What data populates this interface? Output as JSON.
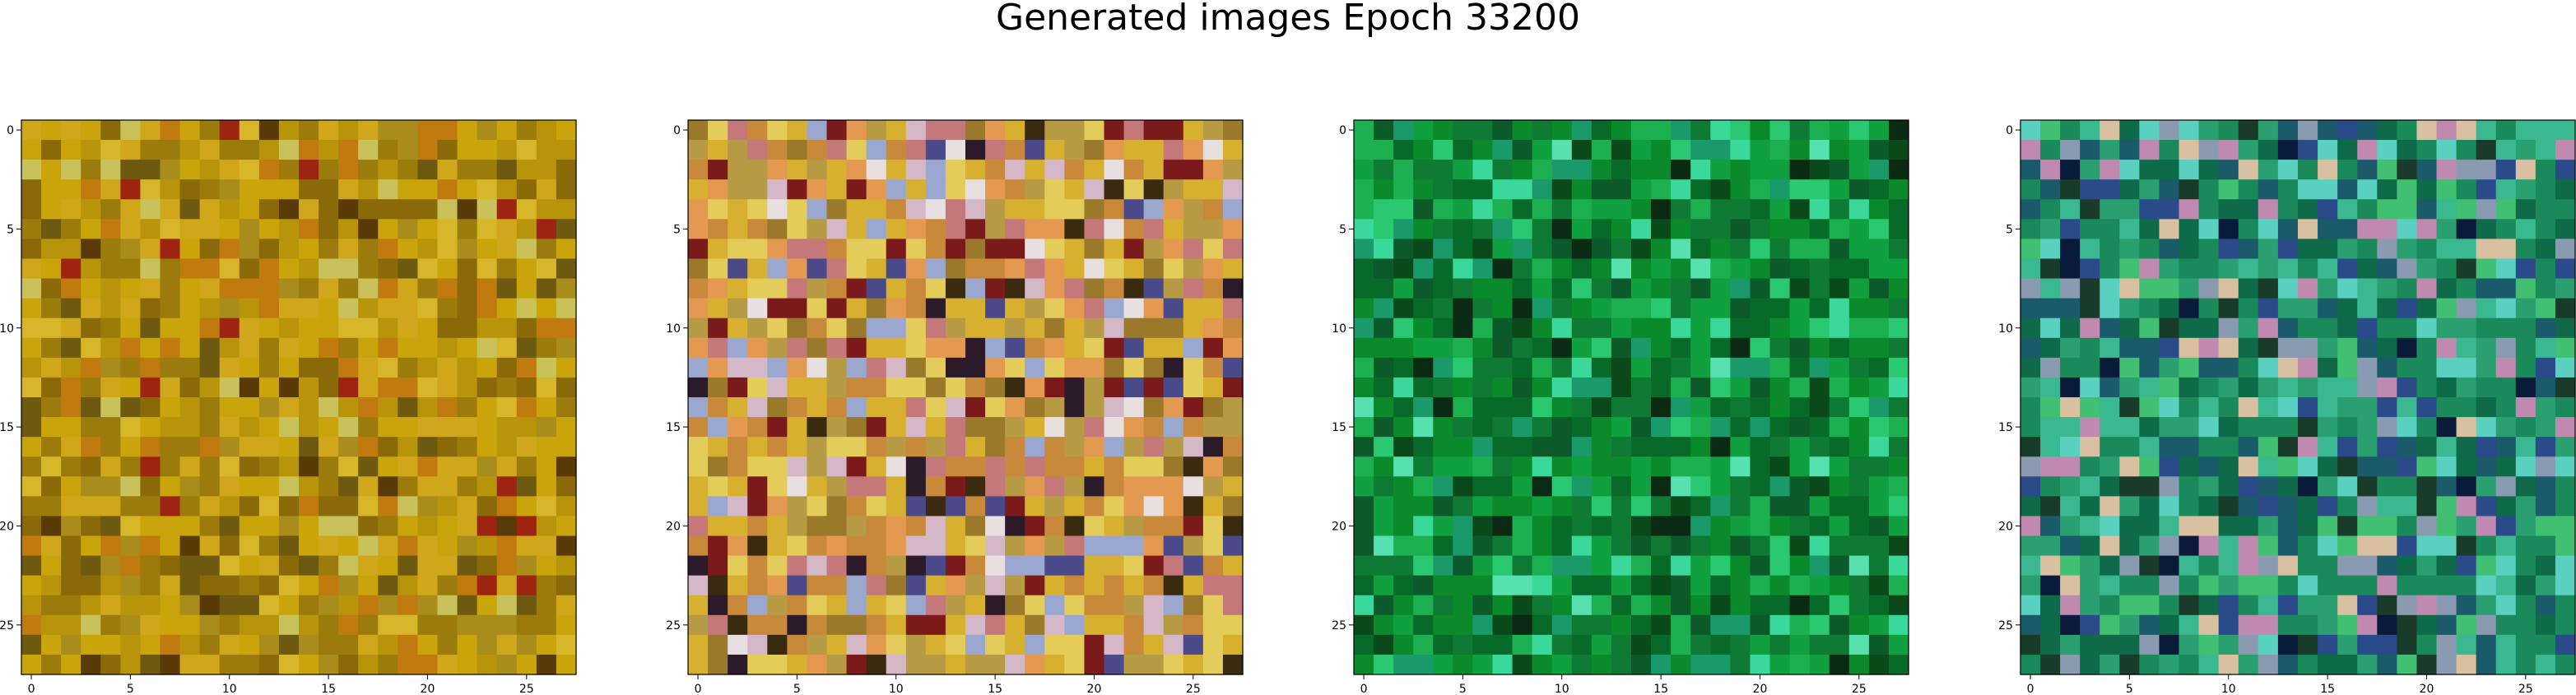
{
  "figure": {
    "title": "Generated images Epoch 33200"
  },
  "chart_data": [
    {
      "type": "heatmap",
      "rows": 28,
      "cols": 28,
      "xticks": [
        0,
        5,
        10,
        15,
        20,
        25
      ],
      "yticks": [
        0,
        5,
        10,
        15,
        20,
        25
      ],
      "xlim": [
        -0.5,
        27.5
      ],
      "ylim": [
        27.5,
        -0.5
      ],
      "grid": false,
      "palette": [
        "#c9a40a",
        "#b8940a",
        "#9a7b0c",
        "#d0a71a",
        "#8a6a08",
        "#c07a10",
        "#6d5a10",
        "#d7b62a",
        "#a88c1c",
        "#5a3a06",
        "#9c2410",
        "#c9c25a"
      ],
      "weights": [
        16,
        14,
        12,
        12,
        10,
        8,
        6,
        6,
        6,
        3,
        3,
        4
      ]
    },
    {
      "type": "heatmap",
      "rows": 28,
      "cols": 28,
      "xticks": [
        0,
        5,
        10,
        15,
        20,
        25
      ],
      "yticks": [
        0,
        5,
        10,
        15,
        20,
        25
      ],
      "xlim": [
        -0.5,
        27.5
      ],
      "ylim": [
        27.5,
        -0.5
      ],
      "grid": false,
      "palette": [
        "#d8b030",
        "#c88a3a",
        "#b69a44",
        "#e3cc5a",
        "#9a7a2a",
        "#e39a50",
        "#c4787a",
        "#7a1a1a",
        "#3a2a10",
        "#d4b8c8",
        "#9aa8d0",
        "#4a4a8a",
        "#e8e0e0",
        "#2a1a2a"
      ],
      "weights": [
        14,
        12,
        10,
        10,
        8,
        8,
        8,
        6,
        4,
        6,
        5,
        3,
        3,
        3
      ]
    },
    {
      "type": "heatmap",
      "rows": 28,
      "cols": 28,
      "xticks": [
        0,
        5,
        10,
        15,
        20,
        25
      ],
      "yticks": [
        0,
        5,
        10,
        15,
        20,
        25
      ],
      "xlim": [
        -0.5,
        27.5
      ],
      "ylim": [
        27.5,
        -0.5
      ],
      "grid": false,
      "palette": [
        "#0a8a2a",
        "#0e7a34",
        "#10a040",
        "#086a28",
        "#1cb050",
        "#0c5a2a",
        "#2ac870",
        "#3ad89a",
        "#1a9a6a",
        "#0a4a1a",
        "#0a2a14",
        "#58e0b0"
      ],
      "weights": [
        16,
        14,
        12,
        12,
        10,
        8,
        6,
        5,
        6,
        5,
        3,
        3
      ]
    },
    {
      "type": "heatmap",
      "rows": 28,
      "cols": 28,
      "xticks": [
        0,
        5,
        10,
        15,
        20,
        25
      ],
      "yticks": [
        0,
        5,
        10,
        15,
        20,
        25
      ],
      "xlim": [
        -0.5,
        27.5
      ],
      "ylim": [
        27.5,
        -0.5
      ],
      "grid": false,
      "palette": [
        "#1a8a5a",
        "#2aa070",
        "#0e6a48",
        "#3ab890",
        "#1a5a6a",
        "#5ad0c0",
        "#2a4a8a",
        "#8a9ab0",
        "#c08ab0",
        "#d8c0a0",
        "#0a1a3a",
        "#1a3a2a",
        "#40c070"
      ],
      "weights": [
        16,
        12,
        12,
        10,
        8,
        8,
        6,
        6,
        5,
        5,
        3,
        4,
        6
      ]
    }
  ]
}
